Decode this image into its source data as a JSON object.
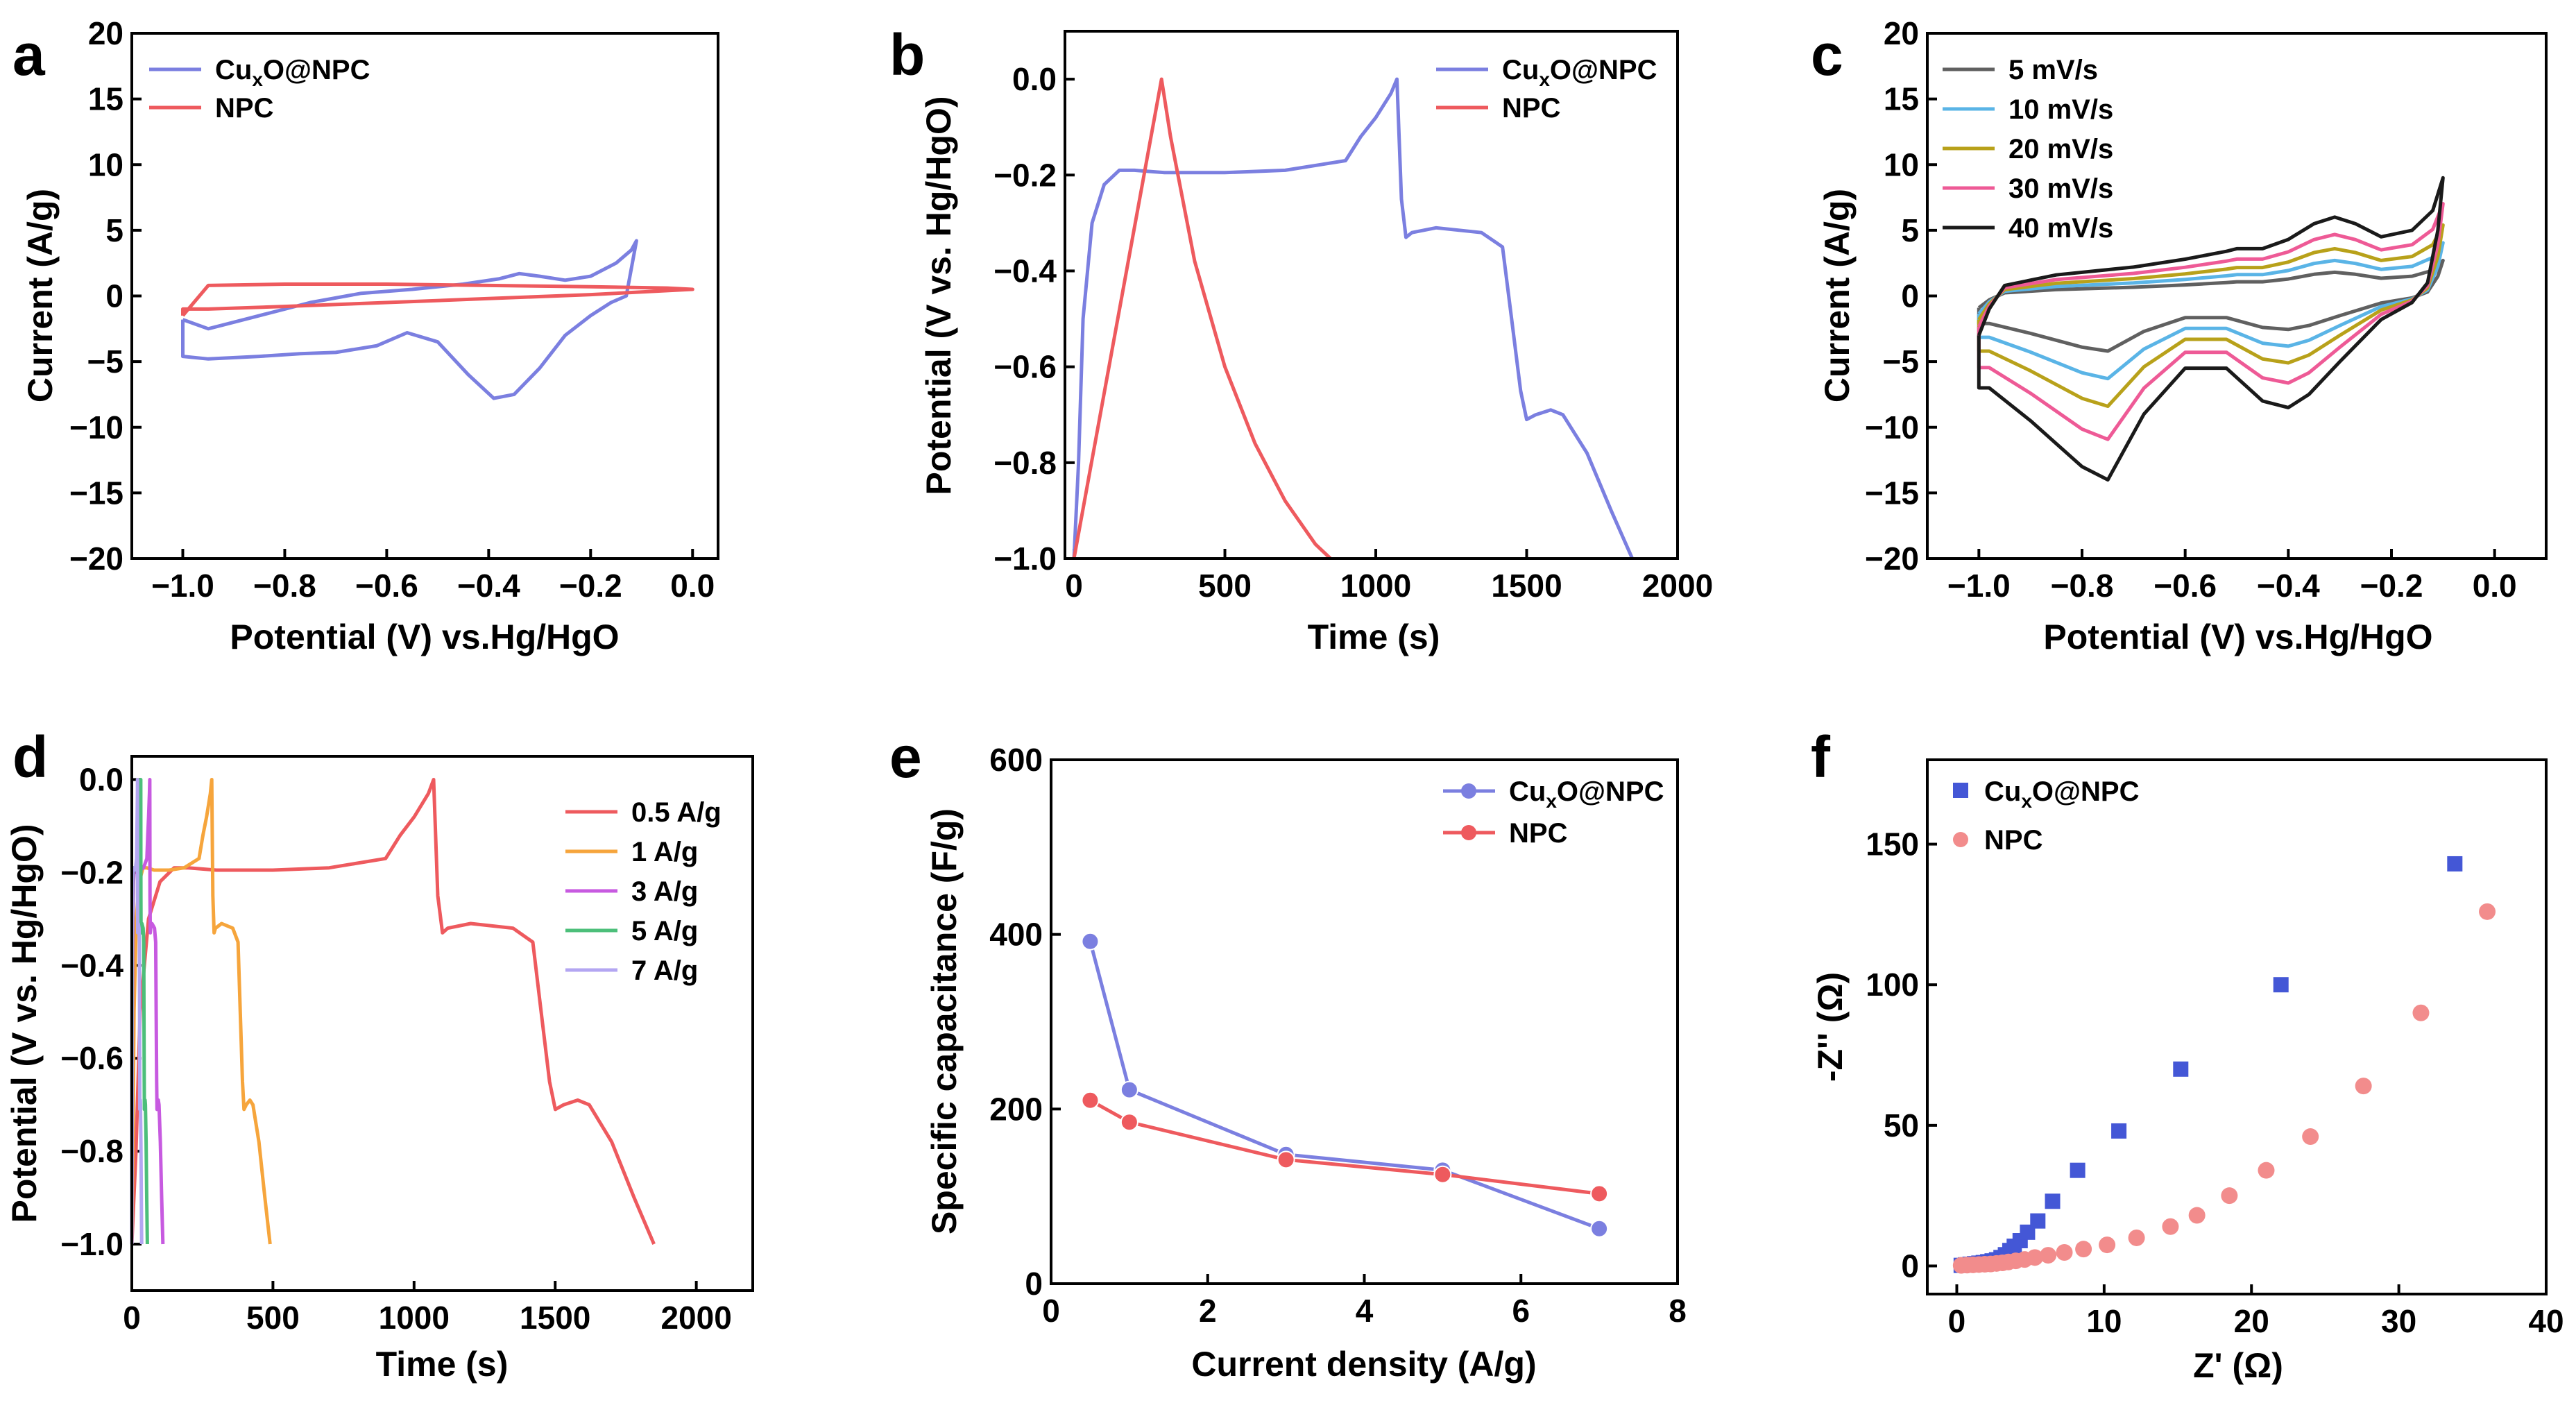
{
  "figure": {
    "panels": [
      "a",
      "b",
      "c",
      "d",
      "e",
      "f"
    ]
  },
  "chart_data": [
    {
      "panel": "a",
      "type": "line",
      "xlabel": "Potential (V) vs.Hg/HgO",
      "ylabel": "Current (A/g)",
      "xlim": [
        -1.1,
        0.05
      ],
      "ylim": [
        -20,
        20
      ],
      "xticks": [
        -1.0,
        -0.8,
        -0.6,
        -0.4,
        -0.2,
        0.0
      ],
      "yticks": [
        -20,
        -15,
        -10,
        -5,
        0,
        5,
        10,
        15,
        20
      ],
      "xtick_labels": [
        "−1.0",
        "−0.8",
        "−0.6",
        "−0.4",
        "−0.2",
        "0.0"
      ],
      "ytick_labels": [
        "−20",
        "−15",
        "−10",
        "−5",
        "0",
        "5",
        "10",
        "15",
        "20"
      ],
      "legend_position": "top-left",
      "series": [
        {
          "name": "CuxO@NPC",
          "label_main": "Cu",
          "label_sub": "x",
          "label_tail": "O@NPC",
          "color": "#7b7fe0",
          "x": [
            -1.0,
            -0.95,
            -0.85,
            -0.75,
            -0.65,
            -0.55,
            -0.45,
            -0.38,
            -0.34,
            -0.3,
            -0.25,
            -0.2,
            -0.15,
            -0.12,
            -0.11,
            -0.13,
            -0.16,
            -0.2,
            -0.25,
            -0.3,
            -0.35,
            -0.39,
            -0.44,
            -0.5,
            -0.56,
            -0.62,
            -0.7,
            -0.77,
            -0.85,
            -0.95,
            -1.0,
            -1.0
          ],
          "y": [
            -1.8,
            -2.5,
            -1.5,
            -0.5,
            0.2,
            0.5,
            0.9,
            1.3,
            1.7,
            1.5,
            1.2,
            1.5,
            2.5,
            3.5,
            4.2,
            0,
            -0.5,
            -1.5,
            -3,
            -5.5,
            -7.5,
            -7.8,
            -6,
            -3.5,
            -2.8,
            -3.8,
            -4.3,
            -4.4,
            -4.6,
            -4.8,
            -4.6,
            -1.8
          ]
        },
        {
          "name": "NPC",
          "label_main": "NPC",
          "label_sub": "",
          "label_tail": "",
          "color": "#ee5a5e",
          "x": [
            -1.0,
            -0.95,
            -0.8,
            -0.6,
            -0.4,
            -0.2,
            -0.05,
            0.0,
            -0.05,
            -0.2,
            -0.4,
            -0.6,
            -0.8,
            -0.95,
            -1.0,
            -1.0
          ],
          "y": [
            -1.5,
            0.8,
            0.9,
            0.9,
            0.8,
            0.7,
            0.6,
            0.5,
            0.4,
            0.1,
            -0.2,
            -0.5,
            -0.8,
            -1.0,
            -1.0,
            -1.5
          ]
        }
      ]
    },
    {
      "panel": "b",
      "type": "line",
      "xlabel": "Time (s)",
      "ylabel": "Potential (V vs. Hg/HgO)",
      "xlim": [
        -30,
        2000
      ],
      "ylim": [
        -1.0,
        0.1
      ],
      "xticks": [
        0,
        500,
        1000,
        1500,
        2000
      ],
      "yticks": [
        -1.0,
        -0.8,
        -0.6,
        -0.4,
        -0.2,
        0.0
      ],
      "xtick_labels": [
        "0",
        "500",
        "1000",
        "1500",
        "2000"
      ],
      "ytick_labels": [
        "−1.0",
        "−0.8",
        "−0.6",
        "−0.4",
        "−0.2",
        "0.0"
      ],
      "legend_position": "top-right",
      "series": [
        {
          "name": "CuxO@NPC",
          "label_main": "Cu",
          "label_sub": "x",
          "label_tail": "O@NPC",
          "color": "#7b7fe0",
          "x": [
            0,
            15,
            30,
            60,
            100,
            150,
            200,
            300,
            500,
            700,
            900,
            950,
            1000,
            1050,
            1070,
            1085,
            1100,
            1120,
            1200,
            1350,
            1420,
            1450,
            1480,
            1500,
            1530,
            1580,
            1620,
            1700,
            1780,
            1850
          ],
          "y": [
            -1.0,
            -0.8,
            -0.5,
            -0.3,
            -0.22,
            -0.19,
            -0.19,
            -0.195,
            -0.195,
            -0.19,
            -0.17,
            -0.12,
            -0.08,
            -0.03,
            0.0,
            -0.25,
            -0.33,
            -0.32,
            -0.31,
            -0.32,
            -0.35,
            -0.5,
            -0.65,
            -0.71,
            -0.7,
            -0.69,
            -0.7,
            -0.78,
            -0.9,
            -1.0
          ]
        },
        {
          "name": "NPC",
          "label_main": "NPC",
          "label_sub": "",
          "label_tail": "",
          "color": "#ee5a5e",
          "x": [
            0,
            290,
            320,
            400,
            500,
            600,
            700,
            800,
            850
          ],
          "y": [
            -1.0,
            0.0,
            -0.12,
            -0.38,
            -0.6,
            -0.76,
            -0.88,
            -0.97,
            -1.0
          ]
        }
      ]
    },
    {
      "panel": "c",
      "type": "line",
      "xlabel": "Potential (V) vs.Hg/HgO",
      "ylabel": "Current (A/g)",
      "xlim": [
        -1.1,
        0.1
      ],
      "ylim": [
        -20,
        20
      ],
      "xticks": [
        -1.0,
        -0.8,
        -0.6,
        -0.4,
        -0.2,
        0.0
      ],
      "yticks": [
        -20,
        -15,
        -10,
        -5,
        0,
        5,
        10,
        15,
        20
      ],
      "xtick_labels": [
        "−1.0",
        "−0.8",
        "−0.6",
        "−0.4",
        "−0.2",
        "0.0"
      ],
      "ytick_labels": [
        "−20",
        "−15",
        "−10",
        "−5",
        "0",
        "5",
        "10",
        "15",
        "20"
      ],
      "legend_position": "top-left",
      "series": [
        {
          "name": "5 mV/s",
          "label_main": "5   mV/s",
          "color": "#606060",
          "scale": 0.3
        },
        {
          "name": "10 mV/s",
          "label_main": "10 mV/s",
          "color": "#5ab4e6",
          "scale": 0.45
        },
        {
          "name": "20 mV/s",
          "label_main": "20 mV/s",
          "color": "#b8a11a",
          "scale": 0.6
        },
        {
          "name": "30 mV/s",
          "label_main": "30 mV/s",
          "color": "#ee5a96",
          "scale": 0.78
        },
        {
          "name": "40 mV/s",
          "label_main": "40 mV/s",
          "color": "#1a1a1a",
          "scale": 1.0
        }
      ],
      "base_x": [
        -1.0,
        -0.98,
        -0.95,
        -0.85,
        -0.7,
        -0.6,
        -0.52,
        -0.5,
        -0.45,
        -0.4,
        -0.35,
        -0.31,
        -0.27,
        -0.22,
        -0.16,
        -0.12,
        -0.1,
        -0.11,
        -0.13,
        -0.16,
        -0.22,
        -0.3,
        -0.36,
        -0.4,
        -0.45,
        -0.52,
        -0.6,
        -0.68,
        -0.75,
        -0.8,
        -0.9,
        -0.98,
        -1.0,
        -1.0
      ],
      "base_y": [
        -3,
        -1,
        0.8,
        1.6,
        2.2,
        2.8,
        3.4,
        3.6,
        3.6,
        4.3,
        5.5,
        6,
        5.5,
        4.5,
        5,
        6.5,
        9,
        5,
        1,
        -0.5,
        -1.8,
        -5,
        -7.5,
        -8.5,
        -8,
        -5.5,
        -5.5,
        -9,
        -14,
        -13,
        -9.5,
        -7,
        -7,
        -3
      ]
    },
    {
      "panel": "d",
      "type": "line",
      "xlabel": "Time (s)",
      "ylabel": "Potential (V vs. Hg/HgO)",
      "xlim": [
        0,
        2200
      ],
      "ylim": [
        -1.1,
        0.05
      ],
      "xticks": [
        0,
        500,
        1000,
        1500,
        2000
      ],
      "yticks": [
        -1.0,
        -0.8,
        -0.6,
        -0.4,
        -0.2,
        0.0
      ],
      "xtick_labels": [
        "0",
        "500",
        "1000",
        "1500",
        "2000"
      ],
      "ytick_labels": [
        "−1.0",
        "−0.8",
        "−0.6",
        "−0.4",
        "−0.2",
        "0.0"
      ],
      "legend_position": "top-right",
      "series": [
        {
          "name": "0.5 A/g",
          "label_main": "0.5 A/g",
          "color": "#ee5a5e",
          "tmax": 1850
        },
        {
          "name": "1 A/g",
          "label_main": "1 A/g",
          "color": "#f6a53c",
          "tmax": 490
        },
        {
          "name": "3 A/g",
          "label_main": "3 A/g",
          "color": "#c75ae0",
          "tmax": 110
        },
        {
          "name": "5 A/g",
          "label_main": "5 A/g",
          "color": "#4cbf7a",
          "tmax": 55
        },
        {
          "name": "7 A/g",
          "label_main": "7 A/g",
          "color": "#b3a6f2",
          "tmax": 35
        }
      ],
      "profile_x": [
        0,
        0.008,
        0.016,
        0.032,
        0.054,
        0.081,
        0.108,
        0.162,
        0.27,
        0.378,
        0.486,
        0.514,
        0.541,
        0.568,
        0.578,
        0.586,
        0.595,
        0.605,
        0.649,
        0.73,
        0.768,
        0.784,
        0.8,
        0.811,
        0.827,
        0.854,
        0.876,
        0.919,
        0.962,
        1.0
      ],
      "profile_y": [
        -1.0,
        -0.8,
        -0.5,
        -0.3,
        -0.22,
        -0.19,
        -0.19,
        -0.195,
        -0.195,
        -0.19,
        -0.17,
        -0.12,
        -0.08,
        -0.03,
        0.0,
        -0.25,
        -0.33,
        -0.32,
        -0.31,
        -0.32,
        -0.35,
        -0.5,
        -0.65,
        -0.71,
        -0.7,
        -0.69,
        -0.7,
        -0.78,
        -0.9,
        -1.0
      ]
    },
    {
      "panel": "e",
      "type": "line",
      "xlabel": "Current density (A/g)",
      "ylabel": "Specific capacitance (F/g)",
      "xlim": [
        0,
        8
      ],
      "ylim": [
        0,
        600
      ],
      "xticks": [
        0,
        2,
        4,
        6,
        8
      ],
      "yticks": [
        0,
        200,
        400,
        600
      ],
      "xtick_labels": [
        "0",
        "2",
        "4",
        "6",
        "8"
      ],
      "ytick_labels": [
        "0",
        "200",
        "400",
        "600"
      ],
      "legend_position": "top-right",
      "series": [
        {
          "name": "CuxO@NPC",
          "label_main": "Cu",
          "label_sub": "x",
          "label_tail": "O@NPC",
          "color": "#7b7fe0",
          "x": [
            0.5,
            1,
            3,
            5,
            7
          ],
          "y": [
            392,
            222,
            148,
            130,
            63
          ]
        },
        {
          "name": "NPC",
          "label_main": "NPC",
          "label_sub": "",
          "label_tail": "",
          "color": "#ee5a5e",
          "x": [
            0.5,
            1,
            3,
            5,
            7
          ],
          "y": [
            210,
            185,
            142,
            125,
            103
          ]
        }
      ]
    },
    {
      "panel": "f",
      "type": "scatter",
      "xlabel": "Z' (Ω)",
      "ylabel": "-Z'' (Ω)",
      "xlim": [
        -2,
        40
      ],
      "ylim": [
        -10,
        180
      ],
      "xticks": [
        0,
        10,
        20,
        30,
        40
      ],
      "yticks": [
        0,
        50,
        100,
        150
      ],
      "xtick_labels": [
        "0",
        "10",
        "20",
        "30",
        "40"
      ],
      "ytick_labels": [
        "0",
        "50",
        "100",
        "150"
      ],
      "legend_position": "top-left",
      "series": [
        {
          "name": "CuxO@NPC",
          "label_main": "Cu",
          "label_sub": "x",
          "label_tail": "O@NPC",
          "color": "#4457d6",
          "marker": "square",
          "x": [
            0.3,
            0.6,
            0.9,
            1.2,
            1.5,
            1.8,
            2.1,
            2.4,
            2.7,
            3.0,
            3.3,
            3.6,
            3.9,
            4.3,
            4.8,
            5.5,
            6.5,
            8.2,
            11,
            15.2,
            22,
            33.8
          ],
          "y": [
            0.2,
            0.4,
            0.6,
            0.8,
            1.0,
            1.2,
            1.5,
            1.8,
            2.2,
            3,
            4,
            5.5,
            7,
            9,
            12,
            16,
            23,
            34,
            48,
            70,
            100,
            143
          ]
        },
        {
          "name": "NPC",
          "label_main": "NPC",
          "label_sub": "",
          "label_tail": "",
          "color": "#f28c8c",
          "marker": "circle",
          "x": [
            0.3,
            0.7,
            1.1,
            1.5,
            1.9,
            2.3,
            2.7,
            3.1,
            3.5,
            4.0,
            4.6,
            5.3,
            6.2,
            7.3,
            8.6,
            10.2,
            12.2,
            14.5,
            16.3,
            18.5,
            21,
            24,
            27.6,
            31.5,
            36
          ],
          "y": [
            0.2,
            0.3,
            0.4,
            0.5,
            0.6,
            0.7,
            0.9,
            1.1,
            1.4,
            1.8,
            2.3,
            3,
            3.8,
            4.8,
            6,
            7.5,
            10,
            14,
            18,
            25,
            34,
            46,
            64,
            90,
            126
          ]
        }
      ]
    }
  ]
}
